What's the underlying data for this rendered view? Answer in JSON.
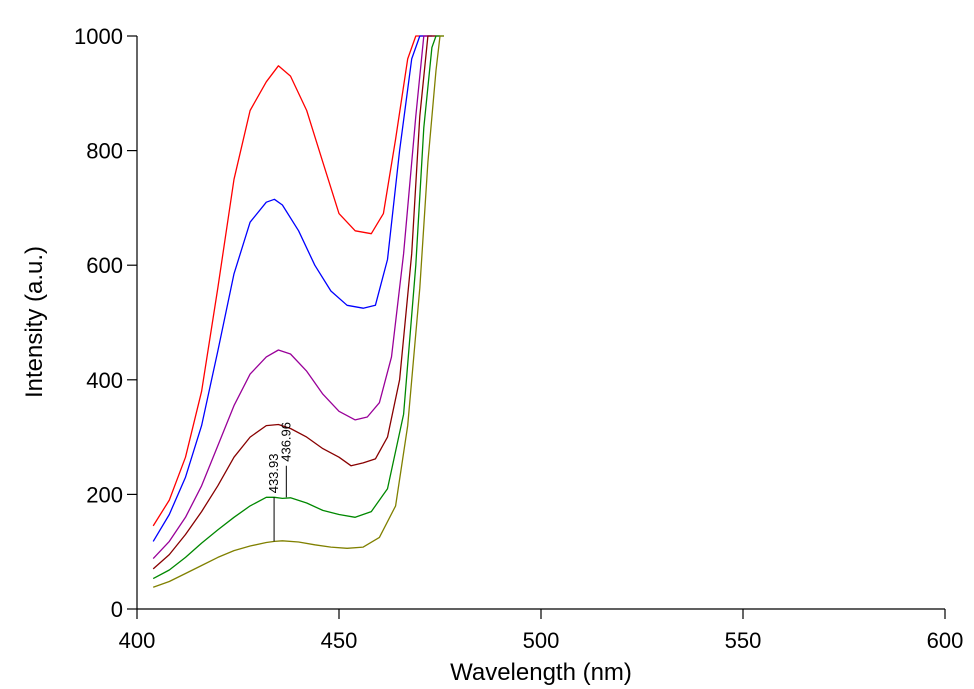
{
  "chart_data": {
    "type": "line",
    "title": "",
    "xlabel": "Wavelength (nm)",
    "ylabel": "Intensity (a.u.)",
    "xlim": [
      400,
      600
    ],
    "ylim": [
      0,
      1000
    ],
    "xticks": [
      400,
      450,
      500,
      550,
      600
    ],
    "yticks": [
      0,
      200,
      400,
      600,
      800,
      1000
    ],
    "grid": false,
    "series": [
      {
        "color": "#ff0000",
        "x": [
          404,
          408,
          412,
          416,
          420,
          424,
          428,
          432,
          435,
          438,
          442,
          446,
          450,
          454,
          458,
          461,
          464,
          467,
          469,
          470,
          472
        ],
        "y": [
          145,
          190,
          265,
          380,
          560,
          750,
          870,
          920,
          948,
          930,
          870,
          780,
          690,
          660,
          655,
          690,
          820,
          960,
          1000,
          1000,
          1000
        ]
      },
      {
        "color": "#0000ff",
        "x": [
          404,
          408,
          412,
          416,
          420,
          424,
          428,
          432,
          434,
          436,
          440,
          444,
          448,
          452,
          456,
          459,
          462,
          465,
          468,
          470,
          471,
          473
        ],
        "y": [
          118,
          165,
          230,
          320,
          450,
          585,
          675,
          710,
          715,
          705,
          660,
          600,
          555,
          530,
          525,
          530,
          610,
          800,
          960,
          1000,
          1000,
          1000
        ]
      },
      {
        "color": "#990099",
        "x": [
          404,
          408,
          412,
          416,
          420,
          424,
          428,
          432,
          435,
          438,
          442,
          446,
          450,
          454,
          457,
          460,
          463,
          466,
          469,
          471,
          472,
          474
        ],
        "y": [
          88,
          118,
          160,
          215,
          285,
          355,
          410,
          440,
          452,
          445,
          415,
          375,
          345,
          330,
          335,
          360,
          440,
          620,
          860,
          1000,
          1000,
          1000
        ]
      },
      {
        "color": "#880000",
        "x": [
          404,
          408,
          412,
          416,
          420,
          424,
          428,
          432,
          435,
          438,
          442,
          446,
          450,
          453,
          456,
          459,
          462,
          465,
          468,
          470,
          472,
          473,
          475
        ],
        "y": [
          70,
          95,
          130,
          170,
          215,
          265,
          300,
          320,
          322,
          315,
          300,
          280,
          265,
          250,
          255,
          262,
          300,
          400,
          620,
          860,
          1000,
          1000,
          1000
        ]
      },
      {
        "color": "#008800",
        "x": [
          404,
          408,
          412,
          416,
          420,
          424,
          428,
          432,
          434,
          436,
          438,
          442,
          446,
          450,
          454,
          458,
          462,
          466,
          469,
          471,
          473,
          474,
          476
        ],
        "y": [
          53,
          68,
          90,
          115,
          138,
          160,
          180,
          195,
          195,
          193,
          194,
          185,
          172,
          165,
          160,
          170,
          210,
          340,
          600,
          840,
          980,
          1000,
          1000
        ]
      },
      {
        "color": "#808000",
        "x": [
          404,
          408,
          412,
          416,
          420,
          424,
          428,
          432,
          434,
          436,
          440,
          444,
          448,
          452,
          456,
          460,
          464,
          467,
          470,
          472,
          474,
          475,
          476
        ],
        "y": [
          38,
          48,
          62,
          76,
          90,
          102,
          110,
          116,
          118,
          119,
          117,
          112,
          108,
          106,
          108,
          125,
          180,
          320,
          560,
          780,
          940,
          1000,
          1000
        ]
      }
    ],
    "annotations": [
      {
        "label": "433.93",
        "x": 433.93,
        "y_bottom": 118,
        "y_top": 195
      },
      {
        "label": "436.96",
        "x": 436.96,
        "y_bottom": 195,
        "y_top": 250
      }
    ]
  }
}
